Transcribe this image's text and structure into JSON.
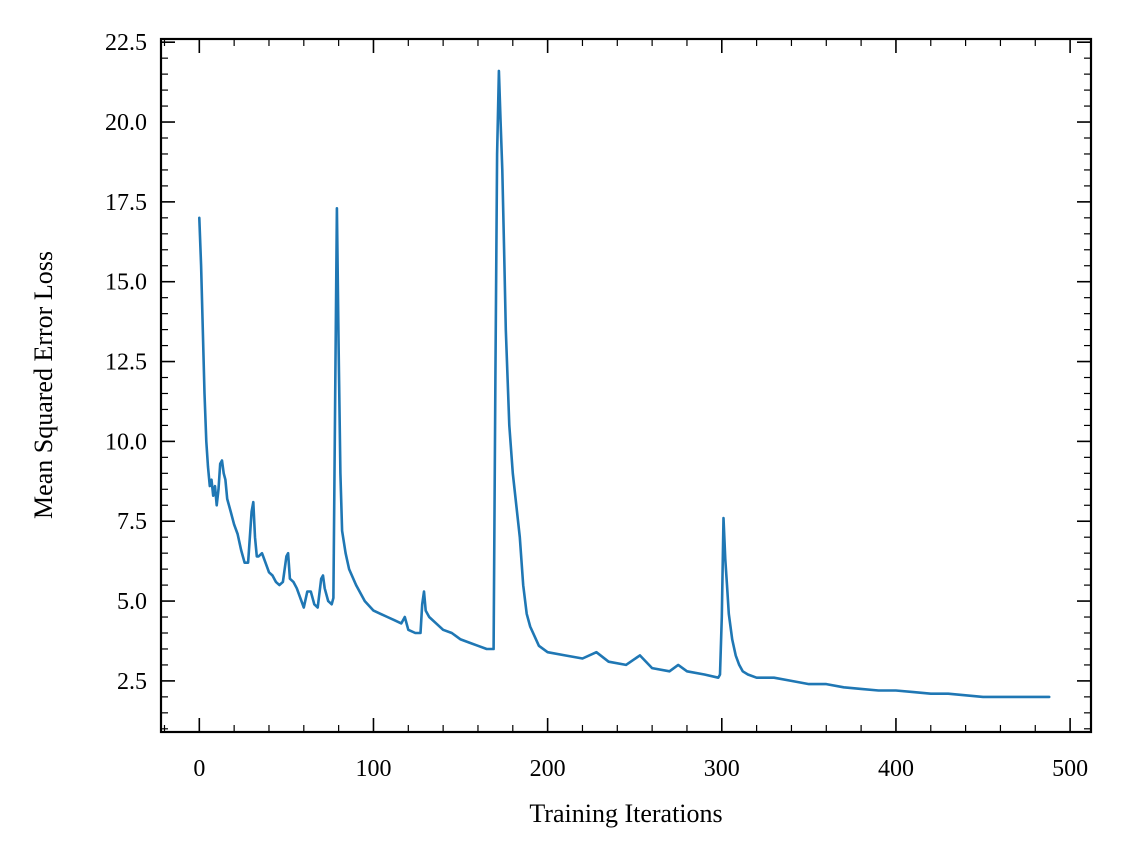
{
  "chart_data": {
    "type": "line",
    "title": "",
    "xlabel": "Training Iterations",
    "ylabel": "Mean Squared Error Loss",
    "xlim": [
      -22,
      512
    ],
    "ylim": [
      0.9,
      22.6
    ],
    "xticks": [
      0,
      100,
      200,
      300,
      400,
      500
    ],
    "xtick_labels": [
      "0",
      "100",
      "200",
      "300",
      "400",
      "500"
    ],
    "yticks": [
      2.5,
      5.0,
      7.5,
      10.0,
      12.5,
      15.0,
      17.5,
      20.0,
      22.5
    ],
    "ytick_labels": [
      "2.5",
      "5.0",
      "7.5",
      "10.0",
      "12.5",
      "15.0",
      "17.5",
      "20.0",
      "22.5"
    ],
    "grid": false,
    "series": [
      {
        "color": "#1f77b4",
        "x": [
          0,
          1,
          2,
          3,
          4,
          5,
          6,
          7,
          8,
          9,
          10,
          11,
          12,
          13,
          14,
          15,
          16,
          18,
          20,
          22,
          24,
          26,
          28,
          30,
          31,
          32,
          33,
          34,
          36,
          38,
          40,
          42,
          44,
          46,
          48,
          50,
          51,
          52,
          54,
          56,
          58,
          60,
          62,
          64,
          66,
          68,
          70,
          71,
          72,
          74,
          76,
          77,
          78,
          79,
          80,
          81,
          82,
          84,
          86,
          90,
          95,
          100,
          104,
          108,
          112,
          116,
          118,
          120,
          124,
          127,
          128,
          129,
          130,
          132,
          136,
          140,
          145,
          150,
          155,
          160,
          165,
          169,
          170,
          171,
          172,
          173,
          174,
          175,
          176,
          178,
          180,
          182,
          184,
          186,
          188,
          190,
          195,
          200,
          210,
          220,
          228,
          235,
          245,
          253,
          260,
          270,
          275,
          280,
          290,
          298,
          299,
          300,
          301,
          302,
          303,
          304,
          306,
          308,
          310,
          312,
          315,
          320,
          330,
          340,
          350,
          360,
          370,
          380,
          390,
          400,
          410,
          420,
          430,
          440,
          450,
          460,
          470,
          480,
          488
        ],
        "y": [
          17.0,
          15.5,
          13.5,
          11.5,
          10.0,
          9.2,
          8.6,
          8.8,
          8.3,
          8.6,
          8.0,
          8.5,
          9.3,
          9.4,
          9.0,
          8.8,
          8.2,
          7.8,
          7.4,
          7.1,
          6.6,
          6.2,
          6.2,
          7.8,
          8.1,
          7.0,
          6.4,
          6.4,
          6.5,
          6.2,
          5.9,
          5.8,
          5.6,
          5.5,
          5.6,
          6.4,
          6.5,
          5.7,
          5.6,
          5.4,
          5.1,
          4.8,
          5.3,
          5.3,
          4.9,
          4.8,
          5.7,
          5.8,
          5.4,
          5.0,
          4.9,
          5.1,
          11.5,
          17.3,
          13.0,
          9.0,
          7.2,
          6.5,
          6.0,
          5.5,
          5.0,
          4.7,
          4.6,
          4.5,
          4.4,
          4.3,
          4.5,
          4.1,
          4.0,
          4.0,
          4.9,
          5.3,
          4.7,
          4.5,
          4.3,
          4.1,
          4.0,
          3.8,
          3.7,
          3.6,
          3.5,
          3.5,
          12.0,
          19.0,
          21.6,
          20.0,
          18.5,
          16.0,
          13.5,
          10.5,
          9.0,
          8.0,
          7.0,
          5.5,
          4.6,
          4.2,
          3.6,
          3.4,
          3.3,
          3.2,
          3.4,
          3.1,
          3.0,
          3.3,
          2.9,
          2.8,
          3.0,
          2.8,
          2.7,
          2.6,
          2.7,
          4.5,
          7.6,
          6.3,
          5.5,
          4.6,
          3.8,
          3.3,
          3.0,
          2.8,
          2.7,
          2.6,
          2.6,
          2.5,
          2.4,
          2.4,
          2.3,
          2.25,
          2.2,
          2.2,
          2.15,
          2.1,
          2.1,
          2.05,
          2.0,
          2.0,
          2.0,
          2.0,
          2.0
        ]
      }
    ]
  }
}
